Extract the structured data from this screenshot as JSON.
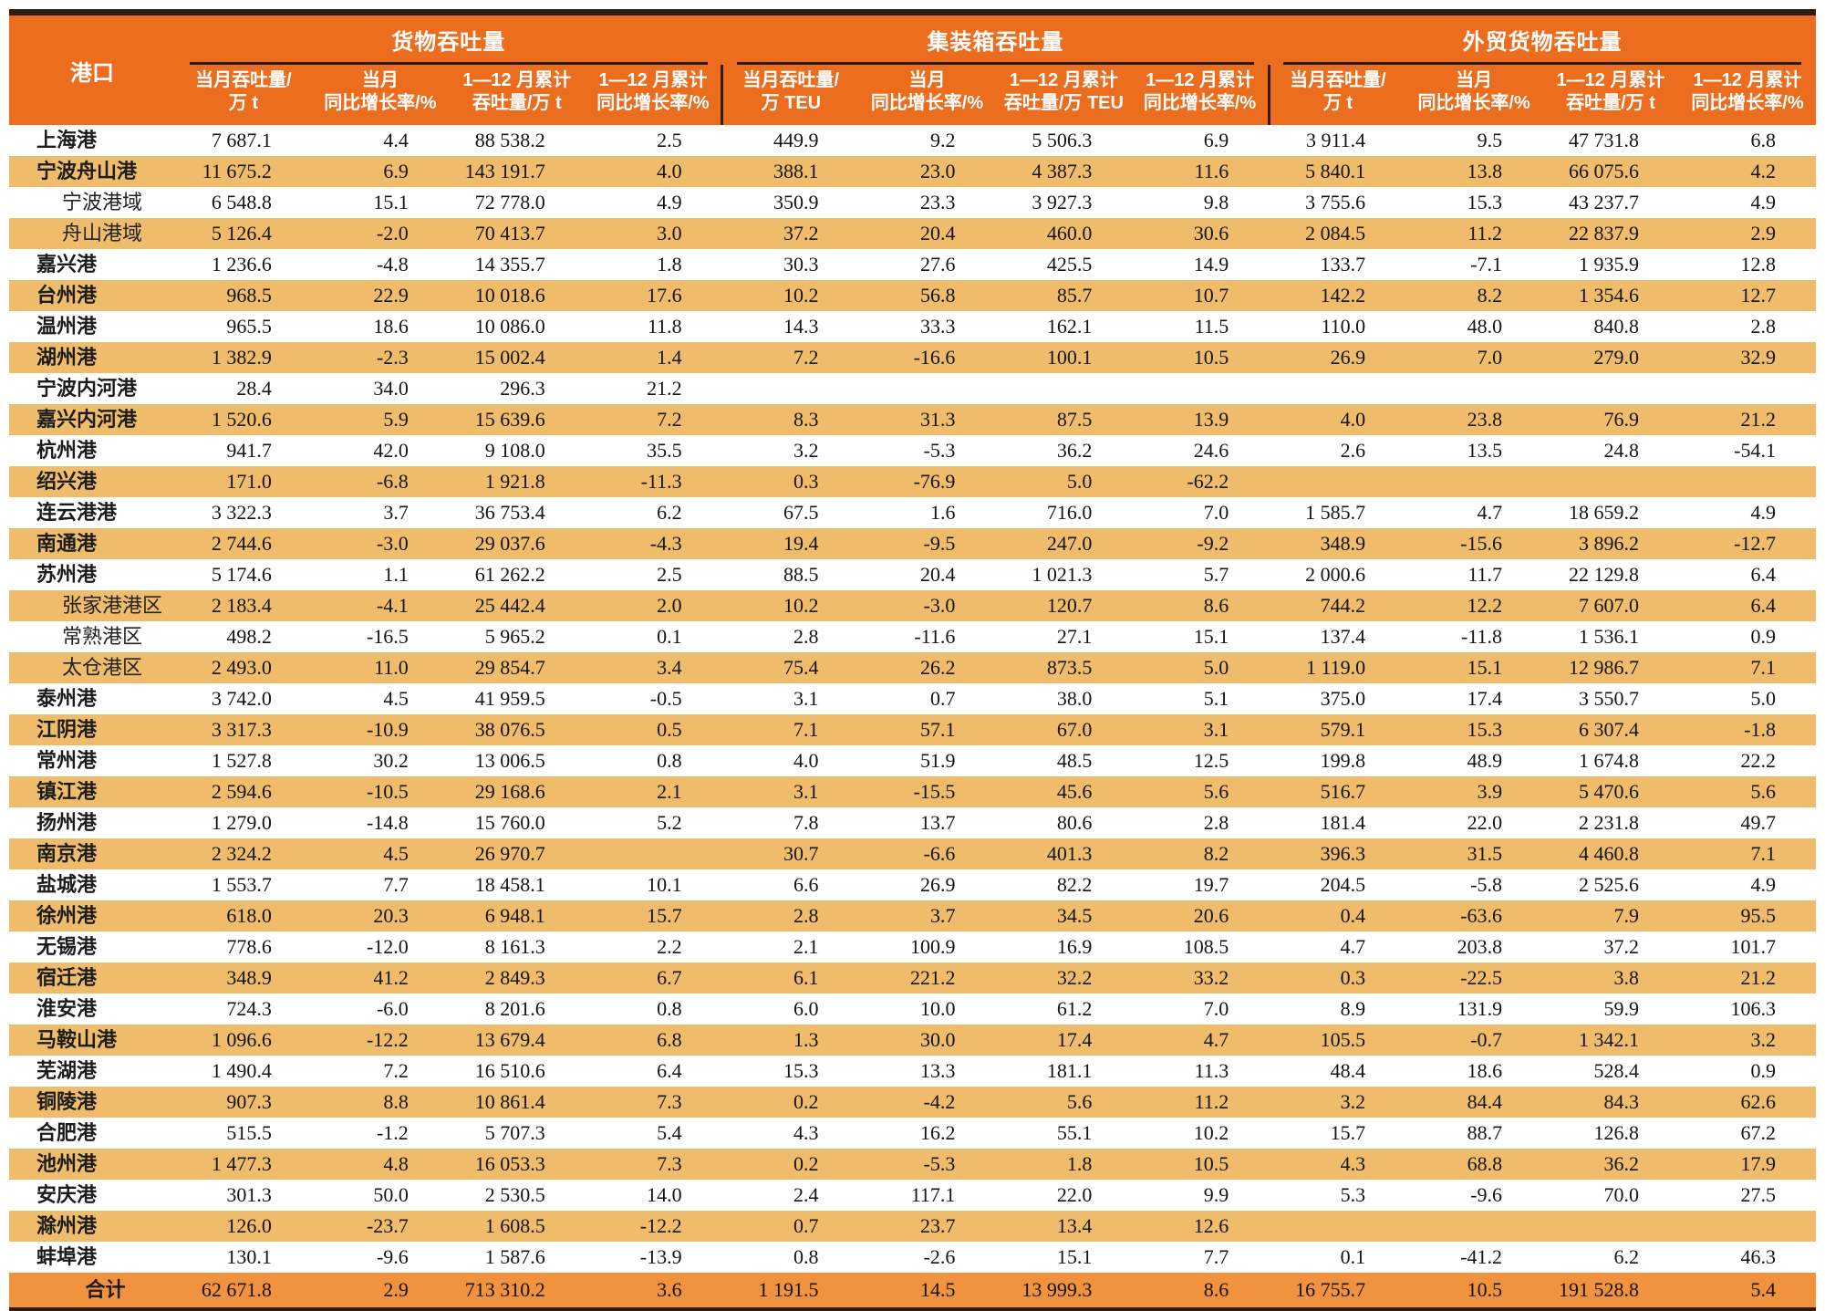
{
  "table": {
    "port_header": "港口",
    "groups": [
      {
        "label": "货物吞吐量",
        "subcols": [
          {
            "l1": "当月吞吐量/",
            "l2": "万 t"
          },
          {
            "l1": "当月",
            "l2": "同比增长率/%"
          },
          {
            "l1": "1—12 月累计",
            "l2": "吞吐量/万 t"
          },
          {
            "l1": "1—12 月累计",
            "l2": "同比增长率/%"
          }
        ]
      },
      {
        "label": "集装箱吞吐量",
        "subcols": [
          {
            "l1": "当月吞吐量/",
            "l2": "万 TEU"
          },
          {
            "l1": "当月",
            "l2": "同比增长率/%"
          },
          {
            "l1": "1—12 月累计",
            "l2": "吞吐量/万 TEU"
          },
          {
            "l1": "1—12 月累计",
            "l2": "同比增长率/%"
          }
        ]
      },
      {
        "label": "外贸货物吞吐量",
        "subcols": [
          {
            "l1": "当月吞吐量/",
            "l2": "万 t"
          },
          {
            "l1": "当月",
            "l2": "同比增长率/%"
          },
          {
            "l1": "1—12 月累计",
            "l2": "吞吐量/万 t"
          },
          {
            "l1": "1—12 月累计",
            "l2": "同比增长率/%"
          }
        ]
      }
    ],
    "rows": [
      {
        "port": "上海港",
        "indent": false,
        "values": [
          "7 687.1",
          "4.4",
          "88 538.2",
          "2.5",
          "449.9",
          "9.2",
          "5 506.3",
          "6.9",
          "3 911.4",
          "9.5",
          "47 731.8",
          "6.8"
        ]
      },
      {
        "port": "宁波舟山港",
        "indent": false,
        "values": [
          "11 675.2",
          "6.9",
          "143 191.7",
          "4.0",
          "388.1",
          "23.0",
          "4 387.3",
          "11.6",
          "5 840.1",
          "13.8",
          "66 075.6",
          "4.2"
        ]
      },
      {
        "port": "宁波港域",
        "indent": true,
        "values": [
          "6 548.8",
          "15.1",
          "72 778.0",
          "4.9",
          "350.9",
          "23.3",
          "3 927.3",
          "9.8",
          "3 755.6",
          "15.3",
          "43 237.7",
          "4.9"
        ]
      },
      {
        "port": "舟山港域",
        "indent": true,
        "values": [
          "5 126.4",
          "-2.0",
          "70 413.7",
          "3.0",
          "37.2",
          "20.4",
          "460.0",
          "30.6",
          "2 084.5",
          "11.2",
          "22 837.9",
          "2.9"
        ]
      },
      {
        "port": "嘉兴港",
        "indent": false,
        "values": [
          "1 236.6",
          "-4.8",
          "14 355.7",
          "1.8",
          "30.3",
          "27.6",
          "425.5",
          "14.9",
          "133.7",
          "-7.1",
          "1 935.9",
          "12.8"
        ]
      },
      {
        "port": "台州港",
        "indent": false,
        "values": [
          "968.5",
          "22.9",
          "10 018.6",
          "17.6",
          "10.2",
          "56.8",
          "85.7",
          "10.7",
          "142.2",
          "8.2",
          "1 354.6",
          "12.7"
        ]
      },
      {
        "port": "温州港",
        "indent": false,
        "values": [
          "965.5",
          "18.6",
          "10 086.0",
          "11.8",
          "14.3",
          "33.3",
          "162.1",
          "11.5",
          "110.0",
          "48.0",
          "840.8",
          "2.8"
        ]
      },
      {
        "port": "湖州港",
        "indent": false,
        "values": [
          "1 382.9",
          "-2.3",
          "15 002.4",
          "1.4",
          "7.2",
          "-16.6",
          "100.1",
          "10.5",
          "26.9",
          "7.0",
          "279.0",
          "32.9"
        ]
      },
      {
        "port": "宁波内河港",
        "indent": false,
        "values": [
          "28.4",
          "34.0",
          "296.3",
          "21.2",
          "",
          "",
          "",
          "",
          "",
          "",
          "",
          ""
        ]
      },
      {
        "port": "嘉兴内河港",
        "indent": false,
        "values": [
          "1 520.6",
          "5.9",
          "15 639.6",
          "7.2",
          "8.3",
          "31.3",
          "87.5",
          "13.9",
          "4.0",
          "23.8",
          "76.9",
          "21.2"
        ]
      },
      {
        "port": "杭州港",
        "indent": false,
        "values": [
          "941.7",
          "42.0",
          "9 108.0",
          "35.5",
          "3.2",
          "-5.3",
          "36.2",
          "24.6",
          "2.6",
          "13.5",
          "24.8",
          "-54.1"
        ]
      },
      {
        "port": "绍兴港",
        "indent": false,
        "values": [
          "171.0",
          "-6.8",
          "1 921.8",
          "-11.3",
          "0.3",
          "-76.9",
          "5.0",
          "-62.2",
          "",
          "",
          "",
          ""
        ]
      },
      {
        "port": "连云港港",
        "indent": false,
        "values": [
          "3 322.3",
          "3.7",
          "36 753.4",
          "6.2",
          "67.5",
          "1.6",
          "716.0",
          "7.0",
          "1 585.7",
          "4.7",
          "18 659.2",
          "4.9"
        ]
      },
      {
        "port": "南通港",
        "indent": false,
        "values": [
          "2 744.6",
          "-3.0",
          "29 037.6",
          "-4.3",
          "19.4",
          "-9.5",
          "247.0",
          "-9.2",
          "348.9",
          "-15.6",
          "3 896.2",
          "-12.7"
        ]
      },
      {
        "port": "苏州港",
        "indent": false,
        "values": [
          "5 174.6",
          "1.1",
          "61 262.2",
          "2.5",
          "88.5",
          "20.4",
          "1 021.3",
          "5.7",
          "2 000.6",
          "11.7",
          "22 129.8",
          "6.4"
        ]
      },
      {
        "port": "张家港港区",
        "indent": true,
        "values": [
          "2 183.4",
          "-4.1",
          "25 442.4",
          "2.0",
          "10.2",
          "-3.0",
          "120.7",
          "8.6",
          "744.2",
          "12.2",
          "7 607.0",
          "6.4"
        ]
      },
      {
        "port": "常熟港区",
        "indent": true,
        "values": [
          "498.2",
          "-16.5",
          "5 965.2",
          "0.1",
          "2.8",
          "-11.6",
          "27.1",
          "15.1",
          "137.4",
          "-11.8",
          "1 536.1",
          "0.9"
        ]
      },
      {
        "port": "太仓港区",
        "indent": true,
        "values": [
          "2 493.0",
          "11.0",
          "29 854.7",
          "3.4",
          "75.4",
          "26.2",
          "873.5",
          "5.0",
          "1 119.0",
          "15.1",
          "12 986.7",
          "7.1"
        ]
      },
      {
        "port": "泰州港",
        "indent": false,
        "values": [
          "3 742.0",
          "4.5",
          "41 959.5",
          "-0.5",
          "3.1",
          "0.7",
          "38.0",
          "5.1",
          "375.0",
          "17.4",
          "3 550.7",
          "5.0"
        ]
      },
      {
        "port": "江阴港",
        "indent": false,
        "values": [
          "3 317.3",
          "-10.9",
          "38 076.5",
          "0.5",
          "7.1",
          "57.1",
          "67.0",
          "3.1",
          "579.1",
          "15.3",
          "6 307.4",
          "-1.8"
        ]
      },
      {
        "port": "常州港",
        "indent": false,
        "values": [
          "1 527.8",
          "30.2",
          "13 006.5",
          "0.8",
          "4.0",
          "51.9",
          "48.5",
          "12.5",
          "199.8",
          "48.9",
          "1 674.8",
          "22.2"
        ]
      },
      {
        "port": "镇江港",
        "indent": false,
        "values": [
          "2 594.6",
          "-10.5",
          "29 168.6",
          "2.1",
          "3.1",
          "-15.5",
          "45.6",
          "5.6",
          "516.7",
          "3.9",
          "5 470.6",
          "5.6"
        ]
      },
      {
        "port": "扬州港",
        "indent": false,
        "values": [
          "1 279.0",
          "-14.8",
          "15 760.0",
          "5.2",
          "7.8",
          "13.7",
          "80.6",
          "2.8",
          "181.4",
          "22.0",
          "2 231.8",
          "49.7"
        ]
      },
      {
        "port": "南京港",
        "indent": false,
        "values": [
          "2 324.2",
          "4.5",
          "26 970.7",
          "",
          "30.7",
          "-6.6",
          "401.3",
          "8.2",
          "396.3",
          "31.5",
          "4 460.8",
          "7.1"
        ]
      },
      {
        "port": "盐城港",
        "indent": false,
        "values": [
          "1 553.7",
          "7.7",
          "18 458.1",
          "10.1",
          "6.6",
          "26.9",
          "82.2",
          "19.7",
          "204.5",
          "-5.8",
          "2 525.6",
          "4.9"
        ]
      },
      {
        "port": "徐州港",
        "indent": false,
        "values": [
          "618.0",
          "20.3",
          "6 948.1",
          "15.7",
          "2.8",
          "3.7",
          "34.5",
          "20.6",
          "0.4",
          "-63.6",
          "7.9",
          "95.5"
        ]
      },
      {
        "port": "无锡港",
        "indent": false,
        "values": [
          "778.6",
          "-12.0",
          "8 161.3",
          "2.2",
          "2.1",
          "100.9",
          "16.9",
          "108.5",
          "4.7",
          "203.8",
          "37.2",
          "101.7"
        ]
      },
      {
        "port": "宿迁港",
        "indent": false,
        "values": [
          "348.9",
          "41.2",
          "2 849.3",
          "6.7",
          "6.1",
          "221.2",
          "32.2",
          "33.2",
          "0.3",
          "-22.5",
          "3.8",
          "21.2"
        ]
      },
      {
        "port": "淮安港",
        "indent": false,
        "values": [
          "724.3",
          "-6.0",
          "8 201.6",
          "0.8",
          "6.0",
          "10.0",
          "61.2",
          "7.0",
          "8.9",
          "131.9",
          "59.9",
          "106.3"
        ]
      },
      {
        "port": "马鞍山港",
        "indent": false,
        "values": [
          "1 096.6",
          "-12.2",
          "13 679.4",
          "6.8",
          "1.3",
          "30.0",
          "17.4",
          "4.7",
          "105.5",
          "-0.7",
          "1 342.1",
          "3.2"
        ]
      },
      {
        "port": "芜湖港",
        "indent": false,
        "values": [
          "1 490.4",
          "7.2",
          "16 510.6",
          "6.4",
          "15.3",
          "13.3",
          "181.1",
          "11.3",
          "48.4",
          "18.6",
          "528.4",
          "0.9"
        ]
      },
      {
        "port": "铜陵港",
        "indent": false,
        "values": [
          "907.3",
          "8.8",
          "10 861.4",
          "7.3",
          "0.2",
          "-4.2",
          "5.6",
          "11.2",
          "3.2",
          "84.4",
          "84.3",
          "62.6"
        ]
      },
      {
        "port": "合肥港",
        "indent": false,
        "values": [
          "515.5",
          "-1.2",
          "5 707.3",
          "5.4",
          "4.3",
          "16.2",
          "55.1",
          "10.2",
          "15.7",
          "88.7",
          "126.8",
          "67.2"
        ]
      },
      {
        "port": "池州港",
        "indent": false,
        "values": [
          "1 477.3",
          "4.8",
          "16 053.3",
          "7.3",
          "0.2",
          "-5.3",
          "1.8",
          "10.5",
          "4.3",
          "68.8",
          "36.2",
          "17.9"
        ]
      },
      {
        "port": "安庆港",
        "indent": false,
        "values": [
          "301.3",
          "50.0",
          "2 530.5",
          "14.0",
          "2.4",
          "117.1",
          "22.0",
          "9.9",
          "5.3",
          "-9.6",
          "70.0",
          "27.5"
        ]
      },
      {
        "port": "滁州港",
        "indent": false,
        "values": [
          "126.0",
          "-23.7",
          "1 608.5",
          "-12.2",
          "0.7",
          "23.7",
          "13.4",
          "12.6",
          "",
          "",
          "",
          ""
        ]
      },
      {
        "port": "蚌埠港",
        "indent": false,
        "values": [
          "130.1",
          "-9.6",
          "1 587.6",
          "-13.9",
          "0.8",
          "-2.6",
          "15.1",
          "7.7",
          "0.1",
          "-41.2",
          "6.2",
          "46.3"
        ]
      }
    ],
    "total": {
      "label": "合计",
      "values": [
        "62 671.8",
        "2.9",
        "713 310.2",
        "3.6",
        "1 191.5",
        "14.5",
        "13 999.3",
        "8.6",
        "16 755.7",
        "10.5",
        "191 528.8",
        "5.4"
      ]
    }
  },
  "colors": {
    "header_bg": "#ED6D1F",
    "stripe_bg": "#EFBC6B",
    "total_bg": "#F1923E",
    "rule": "#2d1c10"
  }
}
